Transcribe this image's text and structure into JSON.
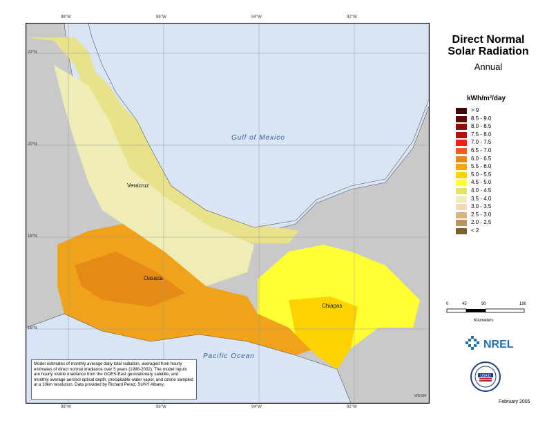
{
  "title": {
    "line1": "Direct Normal",
    "line2": "Solar Radiation",
    "subtitle": "Annual"
  },
  "units": "kWh/m²/day",
  "legend": [
    {
      "label": "> 9",
      "color": "#3b0a0a"
    },
    {
      "label": "8.5 - 9.0",
      "color": "#5e0b0b"
    },
    {
      "label": "8.0 - 8.5",
      "color": "#8a0e0e"
    },
    {
      "label": "7.5 - 8.0",
      "color": "#b50f0f"
    },
    {
      "label": "7.0 - 7.5",
      "color": "#ff1a1a"
    },
    {
      "label": "6.5 - 7.0",
      "color": "#f25a24"
    },
    {
      "label": "6.0 - 6.5",
      "color": "#e68a17"
    },
    {
      "label": "5.5 - 6.0",
      "color": "#f5a80c"
    },
    {
      "label": "5.0 - 5.5",
      "color": "#fcd200"
    },
    {
      "label": "4.5 - 5.0",
      "color": "#ffff33"
    },
    {
      "label": "4.0 - 4.5",
      "color": "#e3e36a"
    },
    {
      "label": "3.5 - 4.0",
      "color": "#f0ecb6"
    },
    {
      "label": "3.0 - 3.5",
      "color": "#f6d9b4"
    },
    {
      "label": "2.5 - 3.0",
      "color": "#dbb27e"
    },
    {
      "label": "2.0 - 2.5",
      "color": "#bd935a"
    },
    {
      "label": "< 2",
      "color": "#7a6333"
    }
  ],
  "map": {
    "lon_ticks": [
      "98°W",
      "96°W",
      "94°W",
      "92°W"
    ],
    "lat_ticks": [
      "22°N",
      "20°N",
      "18°N",
      "16°N"
    ],
    "water_labels": [
      "Gulf of Mexico",
      "Pacific Ocean"
    ],
    "state_labels": [
      "Veracruz",
      "Oaxaca",
      "Chiapas"
    ]
  },
  "scale_bar": {
    "ticks": [
      "0",
      "45",
      "90",
      "180"
    ],
    "units": "Kilometers"
  },
  "note": "Model estimates of monthly average daily total radiation, averaged from hourly estimates of direct normal irradiance over 5 years (1998-2002). The model inputs are hourly visible irradiance from the GOES-East geostationary satellite, and monthly average aerosol optical depth, precipitable water vapor, and ozone sampled at a 10km resolution. Data provided by Richard Perez, SUNY Albany.",
  "logos": {
    "nrel": "NREL",
    "usaid": "USAID"
  },
  "date": "February 2005",
  "projection_label": "WGS84"
}
